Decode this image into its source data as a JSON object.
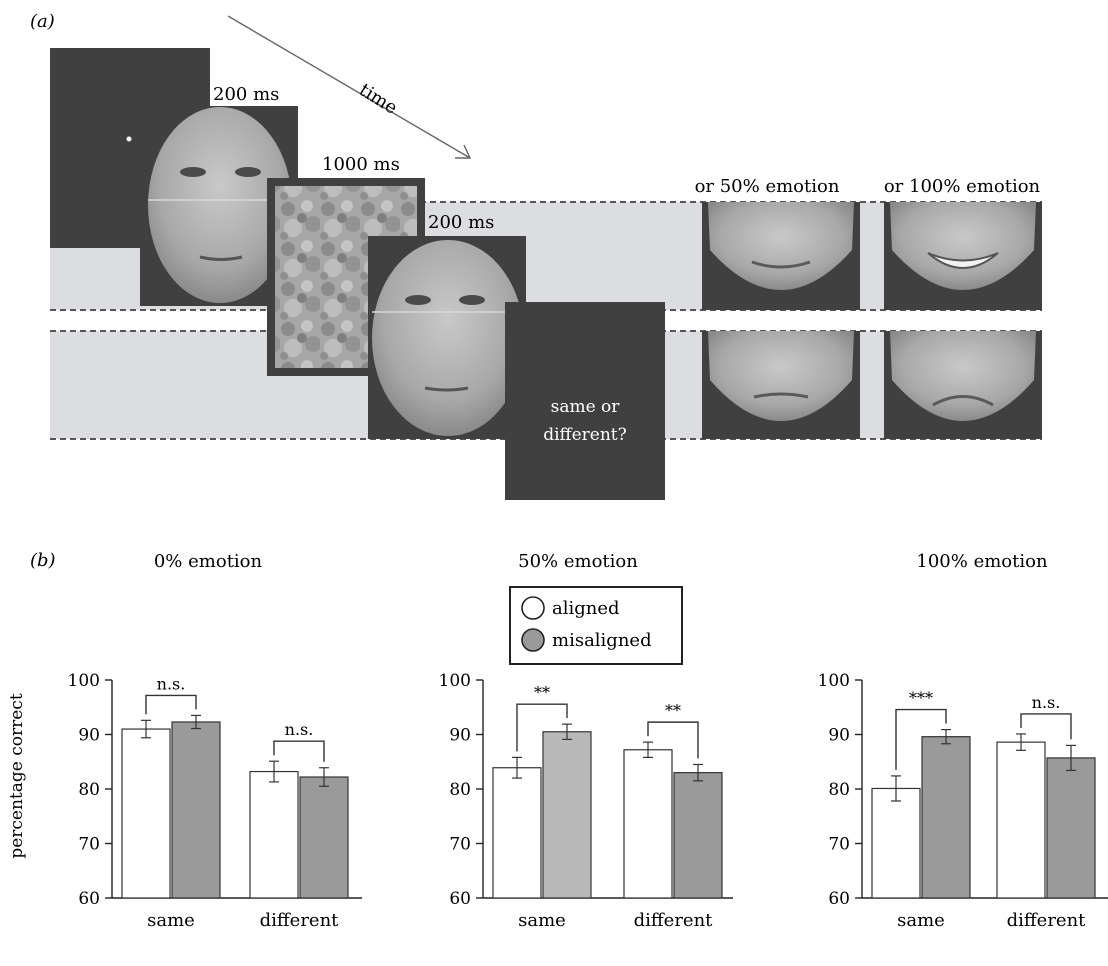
{
  "panel_a": {
    "label": "(a)",
    "time_label": "time",
    "durations": [
      "200 ms",
      "1000 ms",
      "200 ms"
    ],
    "prompt": [
      "same or",
      "different?"
    ],
    "variant_labels": [
      "or 50% emotion",
      "or 100% emotion"
    ]
  },
  "panel_b": {
    "label": "(b)",
    "ylabel": "percentage correct",
    "legend": {
      "aligned": "aligned",
      "misaligned": "misaligned"
    },
    "colors": {
      "aligned": "#ffffff",
      "misaligned": "#9a9a9a",
      "misaligned_light": "#b8b8b8"
    }
  },
  "chart_data": [
    {
      "type": "bar",
      "title": "0% emotion",
      "ylabel": "percentage correct",
      "ylim": [
        60,
        100
      ],
      "yticks": [
        60,
        70,
        80,
        90,
        100
      ],
      "categories": [
        "same",
        "different"
      ],
      "series": [
        {
          "name": "aligned",
          "values": [
            91.0,
            83.2
          ],
          "errors": [
            1.6,
            1.9
          ]
        },
        {
          "name": "misaligned",
          "values": [
            92.3,
            82.2
          ],
          "errors": [
            1.2,
            1.7
          ]
        }
      ],
      "annotations": [
        "n.s.",
        "n.s."
      ]
    },
    {
      "type": "bar",
      "title": "50% emotion",
      "ylabel": "",
      "ylim": [
        60,
        100
      ],
      "yticks": [
        60,
        70,
        80,
        90,
        100
      ],
      "categories": [
        "same",
        "different"
      ],
      "series": [
        {
          "name": "aligned",
          "values": [
            83.9,
            87.2
          ],
          "errors": [
            1.9,
            1.4
          ]
        },
        {
          "name": "misaligned",
          "values": [
            90.5,
            83.0
          ],
          "errors": [
            1.4,
            1.5
          ]
        }
      ],
      "annotations": [
        "**",
        "**"
      ]
    },
    {
      "type": "bar",
      "title": "100% emotion",
      "ylabel": "",
      "ylim": [
        60,
        100
      ],
      "yticks": [
        60,
        70,
        80,
        90,
        100
      ],
      "categories": [
        "same",
        "different"
      ],
      "series": [
        {
          "name": "aligned",
          "values": [
            80.1,
            88.6
          ],
          "errors": [
            2.3,
            1.5
          ]
        },
        {
          "name": "misaligned",
          "values": [
            89.6,
            85.7
          ],
          "errors": [
            1.3,
            2.3
          ]
        }
      ],
      "annotations": [
        "***",
        "n.s."
      ]
    }
  ]
}
